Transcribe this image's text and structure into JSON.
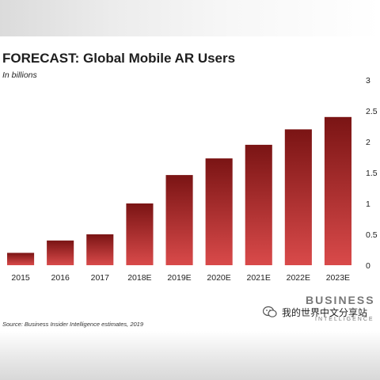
{
  "chart_data": {
    "type": "bar",
    "title": "FORECAST: Global Mobile AR Users",
    "subtitle": "In billions",
    "categories": [
      "2015",
      "2016",
      "2017",
      "2018E",
      "2019E",
      "2020E",
      "2021E",
      "2022E",
      "2023E"
    ],
    "values": [
      0.2,
      0.4,
      0.5,
      1.0,
      1.46,
      1.73,
      1.95,
      2.2,
      2.4
    ],
    "ylim": [
      0,
      3
    ],
    "yticks": [
      "0",
      "0.5",
      "1",
      "1.5",
      "2",
      "2.5",
      "3"
    ],
    "y_axis_side": "right",
    "grid": false,
    "bar_color_top": "#7a1414",
    "bar_color_bottom": "#d94a4a"
  },
  "source": "Source: Business Insider Intelligence estimates, 2019",
  "brand": {
    "name": "BUSINESS",
    "sub": "INTELLIGENCE"
  },
  "watermark": {
    "text": "我的世界中文分享站",
    "icon": "wechat-icon"
  }
}
